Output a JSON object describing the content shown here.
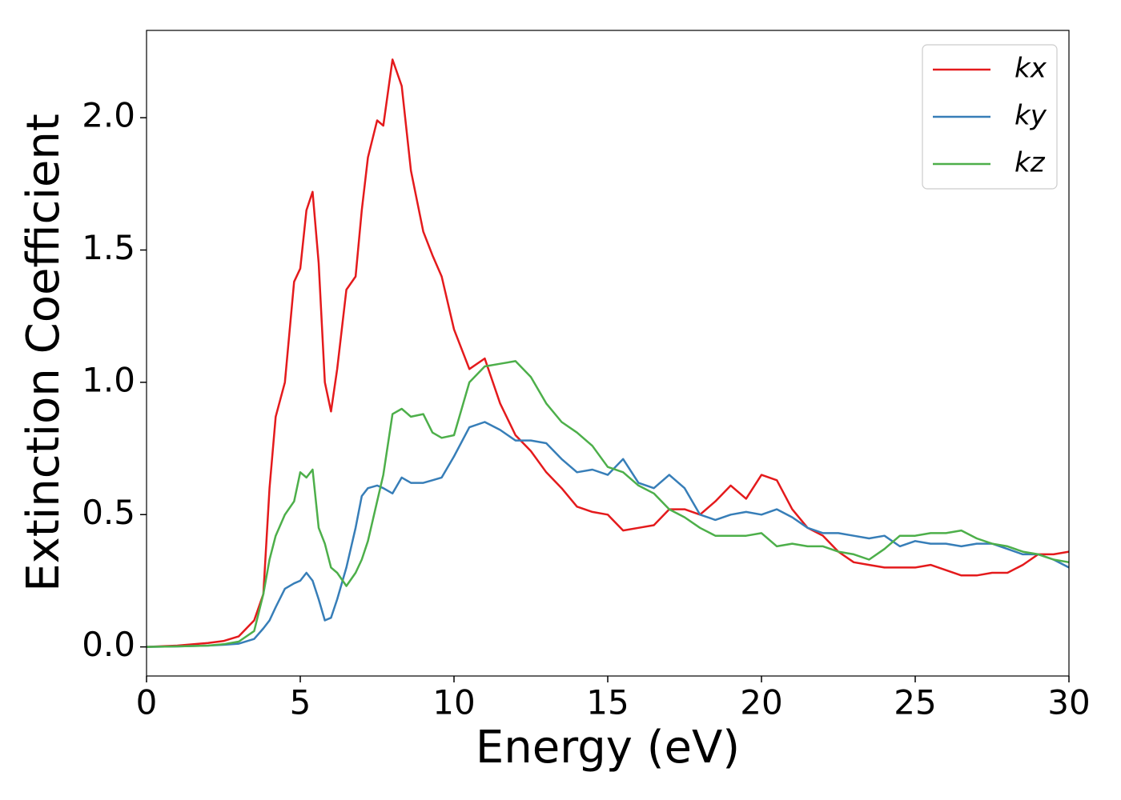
{
  "chart_data": {
    "type": "line",
    "xlabel": "Energy (eV)",
    "ylabel": "Extinction Coefficient",
    "x": [
      0,
      1,
      2,
      2.5,
      3,
      3.5,
      3.8,
      4,
      4.2,
      4.5,
      4.8,
      5,
      5.2,
      5.4,
      5.6,
      5.8,
      6,
      6.2,
      6.5,
      6.8,
      7,
      7.2,
      7.5,
      7.7,
      8,
      8.3,
      8.6,
      9,
      9.3,
      9.6,
      10,
      10.5,
      11,
      11.5,
      12,
      12.5,
      13,
      13.5,
      14,
      14.5,
      15,
      15.5,
      16,
      16.5,
      17,
      17.5,
      18,
      18.5,
      19,
      19.5,
      20,
      20.5,
      21,
      21.5,
      22,
      22.5,
      23,
      23.5,
      24,
      24.5,
      25,
      25.5,
      26,
      26.5,
      27,
      27.5,
      28,
      28.5,
      29,
      29.5,
      30
    ],
    "series": [
      {
        "name": "kx",
        "color": "#e41a1c",
        "values": [
          0,
          0.005,
          0.015,
          0.022,
          0.04,
          0.1,
          0.2,
          0.6,
          0.87,
          1.0,
          1.38,
          1.43,
          1.65,
          1.72,
          1.45,
          1.0,
          0.89,
          1.05,
          1.35,
          1.4,
          1.65,
          1.85,
          1.99,
          1.97,
          2.22,
          2.12,
          1.8,
          1.57,
          1.48,
          1.4,
          1.2,
          1.05,
          1.09,
          0.92,
          0.8,
          0.74,
          0.66,
          0.6,
          0.53,
          0.51,
          0.5,
          0.44,
          0.45,
          0.46,
          0.52,
          0.52,
          0.5,
          0.55,
          0.61,
          0.56,
          0.65,
          0.63,
          0.52,
          0.45,
          0.42,
          0.36,
          0.32,
          0.31,
          0.3,
          0.3,
          0.3,
          0.31,
          0.29,
          0.27,
          0.27,
          0.28,
          0.28,
          0.31,
          0.35,
          0.35,
          0.36
        ]
      },
      {
        "name": "ky",
        "color": "#377eb8",
        "values": [
          0,
          0.002,
          0.005,
          0.008,
          0.012,
          0.03,
          0.07,
          0.1,
          0.15,
          0.22,
          0.24,
          0.25,
          0.28,
          0.25,
          0.18,
          0.1,
          0.11,
          0.18,
          0.3,
          0.45,
          0.57,
          0.6,
          0.61,
          0.6,
          0.58,
          0.64,
          0.62,
          0.62,
          0.63,
          0.64,
          0.72,
          0.83,
          0.85,
          0.82,
          0.78,
          0.78,
          0.77,
          0.71,
          0.66,
          0.67,
          0.65,
          0.71,
          0.62,
          0.6,
          0.65,
          0.6,
          0.5,
          0.48,
          0.5,
          0.51,
          0.5,
          0.52,
          0.49,
          0.45,
          0.43,
          0.43,
          0.42,
          0.41,
          0.42,
          0.38,
          0.4,
          0.39,
          0.39,
          0.38,
          0.39,
          0.39,
          0.37,
          0.35,
          0.35,
          0.33,
          0.3
        ]
      },
      {
        "name": "kz",
        "color": "#4daf4a",
        "values": [
          0,
          0.002,
          0.005,
          0.01,
          0.02,
          0.06,
          0.2,
          0.33,
          0.42,
          0.5,
          0.55,
          0.66,
          0.64,
          0.67,
          0.45,
          0.39,
          0.3,
          0.28,
          0.23,
          0.28,
          0.33,
          0.4,
          0.55,
          0.65,
          0.88,
          0.9,
          0.87,
          0.88,
          0.81,
          0.79,
          0.8,
          1.0,
          1.06,
          1.07,
          1.08,
          1.02,
          0.92,
          0.85,
          0.81,
          0.76,
          0.68,
          0.66,
          0.61,
          0.58,
          0.52,
          0.49,
          0.45,
          0.42,
          0.42,
          0.42,
          0.43,
          0.38,
          0.39,
          0.38,
          0.38,
          0.36,
          0.35,
          0.33,
          0.37,
          0.42,
          0.42,
          0.43,
          0.43,
          0.44,
          0.41,
          0.39,
          0.38,
          0.36,
          0.35,
          0.33,
          0.32
        ]
      }
    ],
    "xlim": [
      0,
      30
    ],
    "ylim": [
      -0.11,
      2.33
    ],
    "xticks": [
      0,
      5,
      10,
      15,
      20,
      25,
      30
    ],
    "yticks": [
      {
        "value": 0,
        "label": "0.0"
      },
      {
        "value": 0.5,
        "label": "0.5"
      },
      {
        "value": 1,
        "label": "1.0"
      },
      {
        "value": 1.5,
        "label": "1.5"
      },
      {
        "value": 2,
        "label": "2.0"
      }
    ],
    "legend": "upper right"
  }
}
